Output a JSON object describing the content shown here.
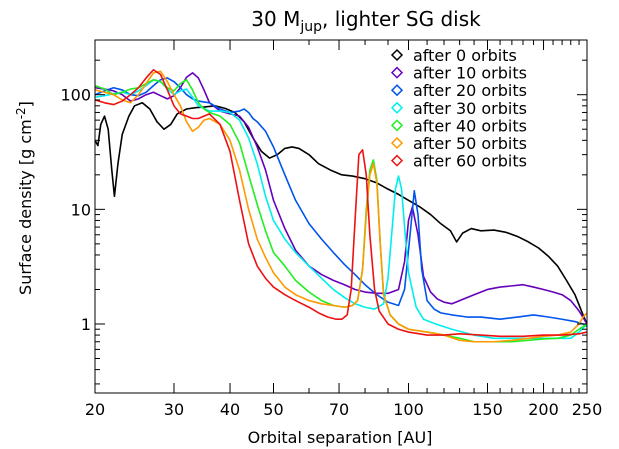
{
  "chart_data": {
    "type": "line",
    "title": "30 M_jup, lighter SG disk",
    "title_main": "30 M",
    "title_sub": "jup",
    "title_rest": ", lighter SG disk",
    "xlabel": "Orbital separation [AU]",
    "ylabel": "Surface density [g cm",
    "ylabel_sup": "-2",
    "ylabel_end": "]",
    "x_scale": "log",
    "y_scale": "log",
    "xlim": [
      20,
      250
    ],
    "ylim": [
      0.25,
      300
    ],
    "x_ticks": [
      20,
      30,
      40,
      50,
      70,
      100,
      150,
      200,
      250
    ],
    "x_tick_labels": [
      "20",
      "30",
      "40",
      "50",
      "70",
      "100",
      "150",
      "200",
      "250"
    ],
    "y_ticks": [
      1,
      10,
      100
    ],
    "y_tick_labels": [
      "1",
      "10",
      "100"
    ],
    "legend_position": "top-right",
    "grid": false,
    "series": [
      {
        "name": "after  0 orbits",
        "color": "#000000",
        "x": [
          20,
          20.3,
          20.6,
          21.0,
          21.4,
          21.8,
          22.1,
          22.5,
          23,
          23.8,
          24.5,
          25.5,
          26.5,
          27.5,
          28.5,
          29.5,
          30.5,
          32,
          33.5,
          35,
          37,
          39,
          41,
          43,
          45,
          47,
          49,
          51,
          53,
          55,
          57,
          60,
          63,
          67,
          71,
          75,
          80,
          85,
          90,
          95,
          100,
          106,
          112,
          118,
          124,
          128,
          132,
          138,
          145,
          155,
          165,
          175,
          185,
          195,
          205,
          215,
          225,
          235,
          245,
          250
        ],
        "y": [
          40,
          36,
          55,
          65,
          50,
          22,
          13,
          25,
          45,
          65,
          80,
          85,
          75,
          58,
          50,
          55,
          68,
          75,
          77,
          78,
          80,
          76,
          70,
          58,
          42,
          32,
          28,
          30,
          34,
          35,
          34,
          30,
          25,
          22,
          20,
          19.5,
          18.5,
          17,
          15,
          13.5,
          12,
          10.5,
          9,
          7.5,
          6.5,
          5.2,
          6.2,
          6.8,
          6.5,
          6.6,
          6.3,
          5.8,
          5.2,
          4.6,
          3.9,
          3.2,
          2.4,
          1.8,
          1.2,
          1.0
        ]
      },
      {
        "name": "after 10 orbits",
        "color": "#6600bb",
        "x": [
          20,
          21,
          22,
          23,
          24,
          25,
          26,
          27,
          28,
          29,
          30,
          31,
          32,
          33,
          34,
          35,
          36,
          38,
          40,
          42,
          44,
          46,
          48,
          50,
          53,
          56,
          60,
          64,
          68,
          72,
          76,
          80,
          85,
          90,
          95,
          98,
          100,
          102,
          105,
          108,
          112,
          116,
          120,
          125,
          130,
          140,
          150,
          160,
          170,
          180,
          190,
          200,
          210,
          220,
          230,
          240,
          250
        ],
        "y": [
          115,
          112,
          108,
          100,
          88,
          92,
          100,
          105,
          98,
          92,
          98,
          115,
          142,
          155,
          140,
          110,
          85,
          72,
          68,
          65,
          52,
          35,
          22,
          12,
          6.8,
          4.4,
          3.2,
          2.7,
          2.4,
          2.2,
          2.0,
          1.9,
          1.85,
          1.85,
          2.0,
          3.5,
          8,
          10.5,
          6,
          2.6,
          1.9,
          1.65,
          1.55,
          1.5,
          1.6,
          1.8,
          2.0,
          2.1,
          2.15,
          2.2,
          2.1,
          2.0,
          1.9,
          1.8,
          1.6,
          1.3,
          1.0
        ]
      },
      {
        "name": "after 20 orbits",
        "color": "#0055ee",
        "x": [
          20,
          21,
          22,
          23,
          24,
          25,
          26,
          27,
          28,
          29,
          30,
          31,
          32,
          33,
          34,
          36,
          38,
          40,
          42,
          43,
          44,
          45,
          46,
          48,
          50,
          53,
          56,
          60,
          64,
          68,
          72,
          76,
          80,
          85,
          90,
          95,
          98,
          101,
          103,
          105,
          107,
          110,
          114,
          118,
          125,
          135,
          145,
          160,
          175,
          190,
          205,
          220,
          235,
          245,
          250
        ],
        "y": [
          100,
          108,
          115,
          110,
          100,
          98,
          105,
          120,
          135,
          140,
          130,
          115,
          100,
          92,
          88,
          85,
          75,
          70,
          72,
          75,
          70,
          62,
          58,
          48,
          35,
          20,
          12,
          7.5,
          5.5,
          4.2,
          3.3,
          2.7,
          2.2,
          1.8,
          1.55,
          1.45,
          2.0,
          6.5,
          14.5,
          9,
          3,
          1.6,
          1.35,
          1.25,
          1.2,
          1.15,
          1.15,
          1.1,
          1.15,
          1.2,
          1.15,
          1.1,
          1.05,
          1.0,
          0.95
        ]
      },
      {
        "name": "after 30 orbits",
        "color": "#00eeee",
        "x": [
          20,
          21,
          22,
          23,
          24,
          25,
          26,
          27,
          28,
          29,
          30,
          31,
          32,
          33,
          34,
          36,
          38,
          40,
          42,
          44,
          46,
          48,
          50,
          53,
          56,
          60,
          64,
          68,
          72,
          76,
          80,
          84,
          88,
          90,
          92,
          93.5,
          95,
          96.5,
          98,
          100,
          104,
          108,
          115,
          125,
          140,
          155,
          170,
          185,
          200,
          215,
          230,
          240,
          250
        ],
        "y": [
          95,
          98,
          102,
          105,
          100,
          108,
          120,
          135,
          130,
          112,
          100,
          108,
          112,
          95,
          80,
          72,
          72,
          70,
          60,
          42,
          25,
          13,
          8.0,
          5.5,
          4.2,
          3.2,
          2.5,
          2.0,
          1.7,
          1.5,
          1.4,
          1.35,
          1.5,
          2.5,
          7,
          15,
          19.5,
          15,
          7,
          2.8,
          1.4,
          1.1,
          1.0,
          0.9,
          0.8,
          0.75,
          0.75,
          0.75,
          0.75,
          0.75,
          0.75,
          0.85,
          1.0
        ]
      },
      {
        "name": "after 40 orbits",
        "color": "#22ee22",
        "x": [
          20,
          21,
          22,
          23,
          24,
          25,
          26,
          27,
          28,
          29,
          30,
          31,
          32,
          33,
          34,
          35,
          36,
          38,
          40,
          42,
          44,
          46,
          48,
          50,
          53,
          56,
          60,
          64,
          68,
          72,
          75,
          77,
          79,
          80.5,
          82,
          83.5,
          85,
          86.5,
          88,
          91,
          95,
          100,
          110,
          120,
          130,
          140,
          155,
          170,
          185,
          200,
          215,
          230,
          240,
          250
        ],
        "y": [
          120,
          112,
          100,
          105,
          112,
          115,
          125,
          135,
          130,
          115,
          108,
          125,
          135,
          110,
          85,
          75,
          70,
          65,
          55,
          38,
          20,
          11,
          6.5,
          4.2,
          3.2,
          2.4,
          1.9,
          1.6,
          1.45,
          1.4,
          1.45,
          1.6,
          3,
          10,
          22,
          27,
          18,
          5,
          1.8,
          1.2,
          1.0,
          0.9,
          0.85,
          0.8,
          0.75,
          0.7,
          0.7,
          0.7,
          0.72,
          0.74,
          0.75,
          0.8,
          0.9,
          1.0
        ]
      },
      {
        "name": "after 50 orbits",
        "color": "#ff9900",
        "x": [
          20,
          21,
          22,
          23,
          24,
          25,
          26,
          27,
          28,
          29,
          30,
          31,
          32,
          33,
          34,
          35,
          36,
          38,
          40,
          42,
          44,
          46,
          48,
          50,
          53,
          56,
          60,
          64,
          68,
          72,
          75,
          77,
          79,
          80.5,
          82,
          83.5,
          85,
          86.5,
          88,
          91,
          95,
          100,
          110,
          120,
          130,
          140,
          155,
          170,
          185,
          200,
          215,
          230,
          240,
          245,
          250
        ],
        "y": [
          110,
          105,
          100,
          90,
          85,
          100,
          125,
          155,
          160,
          130,
          100,
          80,
          58,
          48,
          52,
          60,
          62,
          55,
          40,
          22,
          10,
          5.5,
          3.8,
          2.8,
          2.1,
          1.8,
          1.6,
          1.5,
          1.45,
          1.4,
          1.45,
          1.6,
          3,
          9,
          20,
          25,
          17,
          5,
          1.8,
          1.2,
          1.0,
          0.9,
          0.85,
          0.8,
          0.72,
          0.7,
          0.7,
          0.72,
          0.75,
          0.78,
          0.8,
          0.85,
          1.0,
          1.15,
          1.25
        ]
      },
      {
        "name": "after 60 orbits",
        "color": "#ee1111",
        "x": [
          20,
          21,
          22,
          23,
          24,
          25,
          26,
          27,
          28,
          29,
          30,
          31,
          32,
          33,
          34,
          35,
          36,
          38,
          40,
          42,
          44,
          46,
          48,
          50,
          53,
          56,
          60,
          63,
          66,
          69,
          71,
          73,
          74.5,
          76,
          77.5,
          79,
          80.5,
          82,
          84,
          86,
          90,
          95,
          100,
          110,
          120,
          130,
          145,
          160,
          180,
          200,
          220,
          240,
          250
        ],
        "y": [
          90,
          85,
          82,
          88,
          100,
          115,
          140,
          165,
          150,
          110,
          80,
          68,
          65,
          62,
          62,
          65,
          68,
          55,
          32,
          12,
          5,
          3.2,
          2.5,
          2.1,
          1.8,
          1.6,
          1.4,
          1.25,
          1.15,
          1.1,
          1.1,
          1.2,
          2,
          8,
          30,
          33,
          20,
          6,
          2,
          1.3,
          1.0,
          0.9,
          0.85,
          0.8,
          0.8,
          0.82,
          0.8,
          0.78,
          0.78,
          0.8,
          0.8,
          0.82,
          0.85
        ]
      }
    ]
  }
}
